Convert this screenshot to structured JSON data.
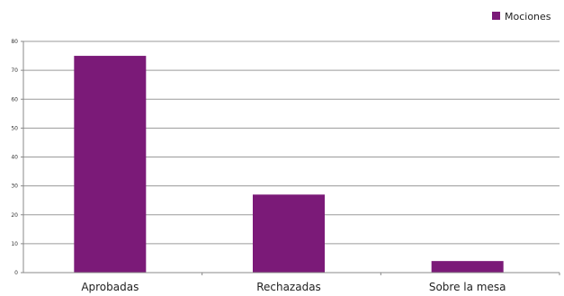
{
  "chart_data": {
    "type": "bar",
    "title": "",
    "xlabel": "",
    "ylabel": "",
    "categories": [
      "Aprobadas",
      "Rechazadas",
      "Sobre la mesa"
    ],
    "series": [
      {
        "name": "Mociones",
        "values": [
          75,
          27,
          4
        ]
      }
    ],
    "ylim": [
      0,
      80
    ],
    "yticks": [
      0,
      10,
      20,
      30,
      40,
      50,
      60,
      70,
      80
    ],
    "grid": true,
    "legend_position": "top-right",
    "colors": {
      "bar": "#7b1a78",
      "grid": "#9a9a9a",
      "axis": "#888888"
    }
  }
}
